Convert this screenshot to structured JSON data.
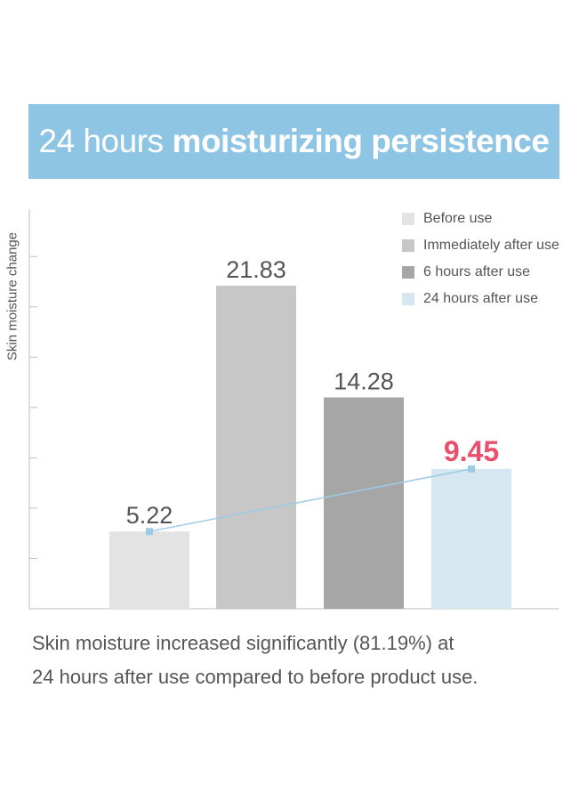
{
  "header": {
    "title_light": "24 hours",
    "title_bold": "moisturizing persistence"
  },
  "chart_data": {
    "type": "bar",
    "ylabel": "Skin moisture change",
    "categories": [
      "Before use",
      "Immediately after use",
      "6 hours after use",
      "24 hours after use"
    ],
    "values": [
      5.22,
      21.83,
      14.28,
      9.45
    ],
    "value_labels": [
      "5.22",
      "21.83",
      "14.28",
      "9.45"
    ],
    "colors": [
      "#e3e3e3",
      "#c7c7c7",
      "#a6a6a6",
      "#d6e7f1"
    ],
    "highlight_label_color": "#e8506b",
    "trend_line": {
      "from_category": "Before use",
      "to_category": "24 hours after use",
      "color": "#9ccbe6"
    },
    "ylim": [
      0,
      27
    ],
    "y_tick_values": [
      3.4,
      6.8,
      10.2,
      13.6,
      17.0,
      20.4,
      23.8,
      27.2
    ],
    "tick_labels_shown": false,
    "grid": false,
    "legend_position": "top-right"
  },
  "caption": {
    "line1": "Skin moisture increased significantly (81.19%) at",
    "line2": "24 hours after use compared to before product use."
  }
}
